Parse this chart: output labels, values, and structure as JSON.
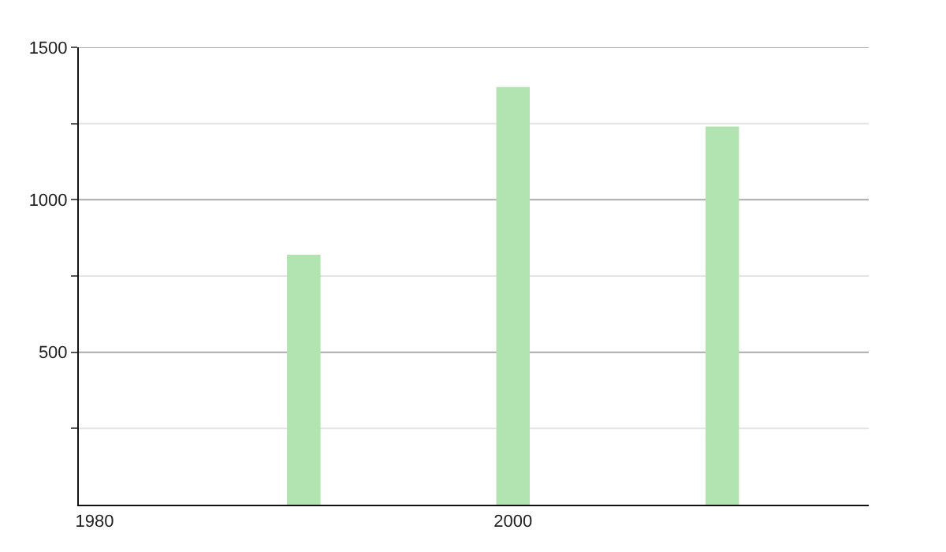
{
  "chart_data": {
    "type": "bar",
    "x": [
      1990,
      2000,
      2010
    ],
    "values": [
      820,
      1370,
      1240
    ],
    "color": "#b2e4b2",
    "xlim": [
      1979.25,
      2017
    ],
    "xticks": [
      1980,
      2000
    ],
    "ylim": [
      0,
      1500
    ],
    "yticks": [
      {
        "value": 250,
        "label": null
      },
      500,
      {
        "value": 750,
        "label": null
      },
      1000,
      {
        "value": 1250,
        "label": null
      },
      1500
    ],
    "grid": "y",
    "legend": false
  }
}
